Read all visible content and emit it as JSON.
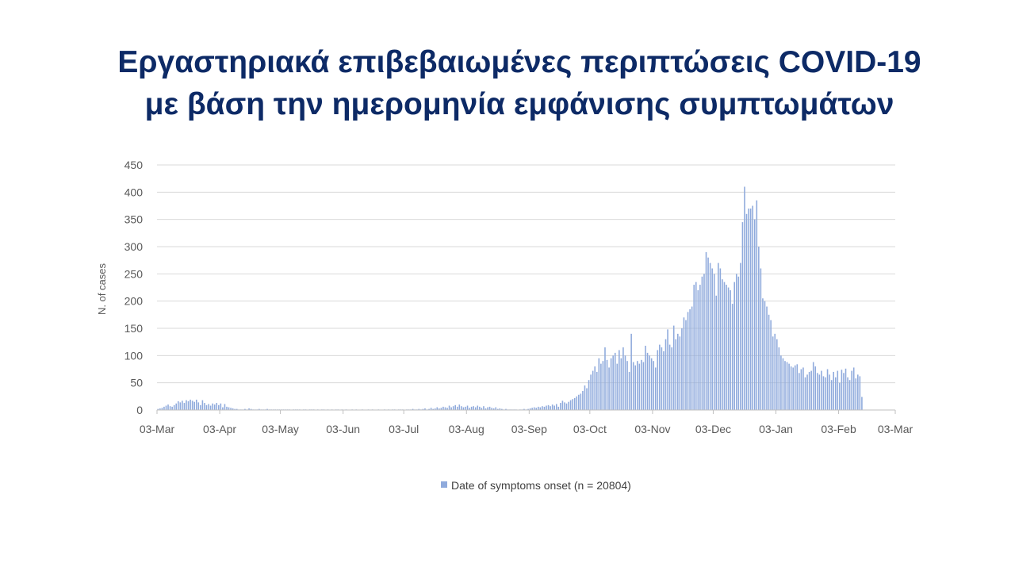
{
  "slide": {
    "title_line1": "Εργαστηριακά επιβεβαιωμένες περιπτώσεις COVID-19",
    "title_line2": "με βάση την ημερομηνία εμφάνισης συμπτωμάτων"
  },
  "chart_data": {
    "type": "bar",
    "title": "",
    "xlabel": "",
    "ylabel": "N. of cases",
    "ylim": [
      0,
      450
    ],
    "yticks": [
      0,
      50,
      100,
      150,
      200,
      250,
      300,
      350,
      400,
      450
    ],
    "x_start": "03-Mar",
    "x_end": "03-Mar",
    "xtick_labels": [
      "03-Mar",
      "03-Apr",
      "03-May",
      "03-Jun",
      "03-Jul",
      "03-Aug",
      "03-Sep",
      "03-Oct",
      "03-Nov",
      "03-Dec",
      "03-Jan",
      "03-Feb",
      "03-Mar"
    ],
    "xtick_day_index": [
      0,
      31,
      61,
      92,
      122,
      153,
      184,
      214,
      245,
      275,
      306,
      337,
      365
    ],
    "grid": true,
    "legend_position": "bottom",
    "color": "#8faadc",
    "series": [
      {
        "name": "Date of symptoms onset (n = 20804)",
        "values": [
          2,
          3,
          4,
          6,
          8,
          10,
          7,
          6,
          9,
          12,
          16,
          14,
          17,
          13,
          18,
          16,
          19,
          17,
          15,
          19,
          14,
          9,
          18,
          13,
          9,
          11,
          8,
          12,
          10,
          13,
          9,
          12,
          5,
          11,
          6,
          5,
          4,
          3,
          2,
          2,
          1,
          1,
          1,
          2,
          1,
          3,
          2,
          1,
          1,
          1,
          2,
          1,
          1,
          1,
          2,
          1,
          1,
          1,
          1,
          1,
          1,
          1,
          1,
          1,
          1,
          1,
          0,
          1,
          1,
          1,
          1,
          0,
          1,
          1,
          0,
          1,
          1,
          1,
          0,
          1,
          0,
          1,
          1,
          0,
          1,
          0,
          1,
          0,
          1,
          1,
          0,
          1,
          0,
          1,
          0,
          0,
          1,
          0,
          1,
          0,
          0,
          1,
          0,
          0,
          1,
          0,
          1,
          0,
          0,
          1,
          0,
          0,
          1,
          0,
          1,
          0,
          1,
          1,
          0,
          1,
          1,
          1,
          0,
          1,
          1,
          1,
          2,
          1,
          1,
          2,
          1,
          2,
          3,
          1,
          2,
          4,
          2,
          3,
          5,
          3,
          4,
          6,
          5,
          4,
          8,
          5,
          7,
          9,
          6,
          10,
          7,
          5,
          6,
          8,
          4,
          6,
          7,
          5,
          8,
          6,
          4,
          7,
          3,
          5,
          6,
          4,
          3,
          5,
          2,
          3,
          2,
          1,
          2,
          1,
          1,
          1,
          1,
          1,
          0,
          1,
          1,
          2,
          1,
          2,
          3,
          4,
          5,
          4,
          6,
          5,
          7,
          6,
          8,
          9,
          7,
          10,
          8,
          11,
          6,
          13,
          17,
          14,
          12,
          15,
          18,
          20,
          22,
          25,
          28,
          30,
          35,
          45,
          40,
          55,
          65,
          72,
          80,
          70,
          95,
          85,
          90,
          115,
          92,
          78,
          95,
          100,
          105,
          85,
          110,
          95,
          115,
          100,
          90,
          70,
          140,
          88,
          82,
          90,
          85,
          92,
          88,
          118,
          105,
          100,
          95,
          90,
          78,
          110,
          120,
          115,
          108,
          130,
          148,
          120,
          115,
          155,
          130,
          140,
          135,
          150,
          170,
          165,
          180,
          185,
          190,
          230,
          235,
          220,
          230,
          245,
          250,
          290,
          280,
          270,
          260,
          250,
          210,
          270,
          260,
          240,
          235,
          230,
          225,
          220,
          195,
          235,
          250,
          245,
          270,
          345,
          410,
          360,
          370,
          370,
          375,
          350,
          385,
          300,
          260,
          205,
          200,
          190,
          175,
          165,
          135,
          140,
          130,
          115,
          100,
          95,
          90,
          88,
          85,
          80,
          78,
          82,
          84,
          68,
          75,
          78,
          60,
          65,
          70,
          72,
          88,
          80,
          68,
          65,
          72,
          62,
          60,
          75,
          65,
          55,
          70,
          60,
          72,
          50,
          74,
          68,
          76,
          60,
          55,
          72,
          78,
          58,
          65,
          62,
          24
        ]
      }
    ]
  }
}
